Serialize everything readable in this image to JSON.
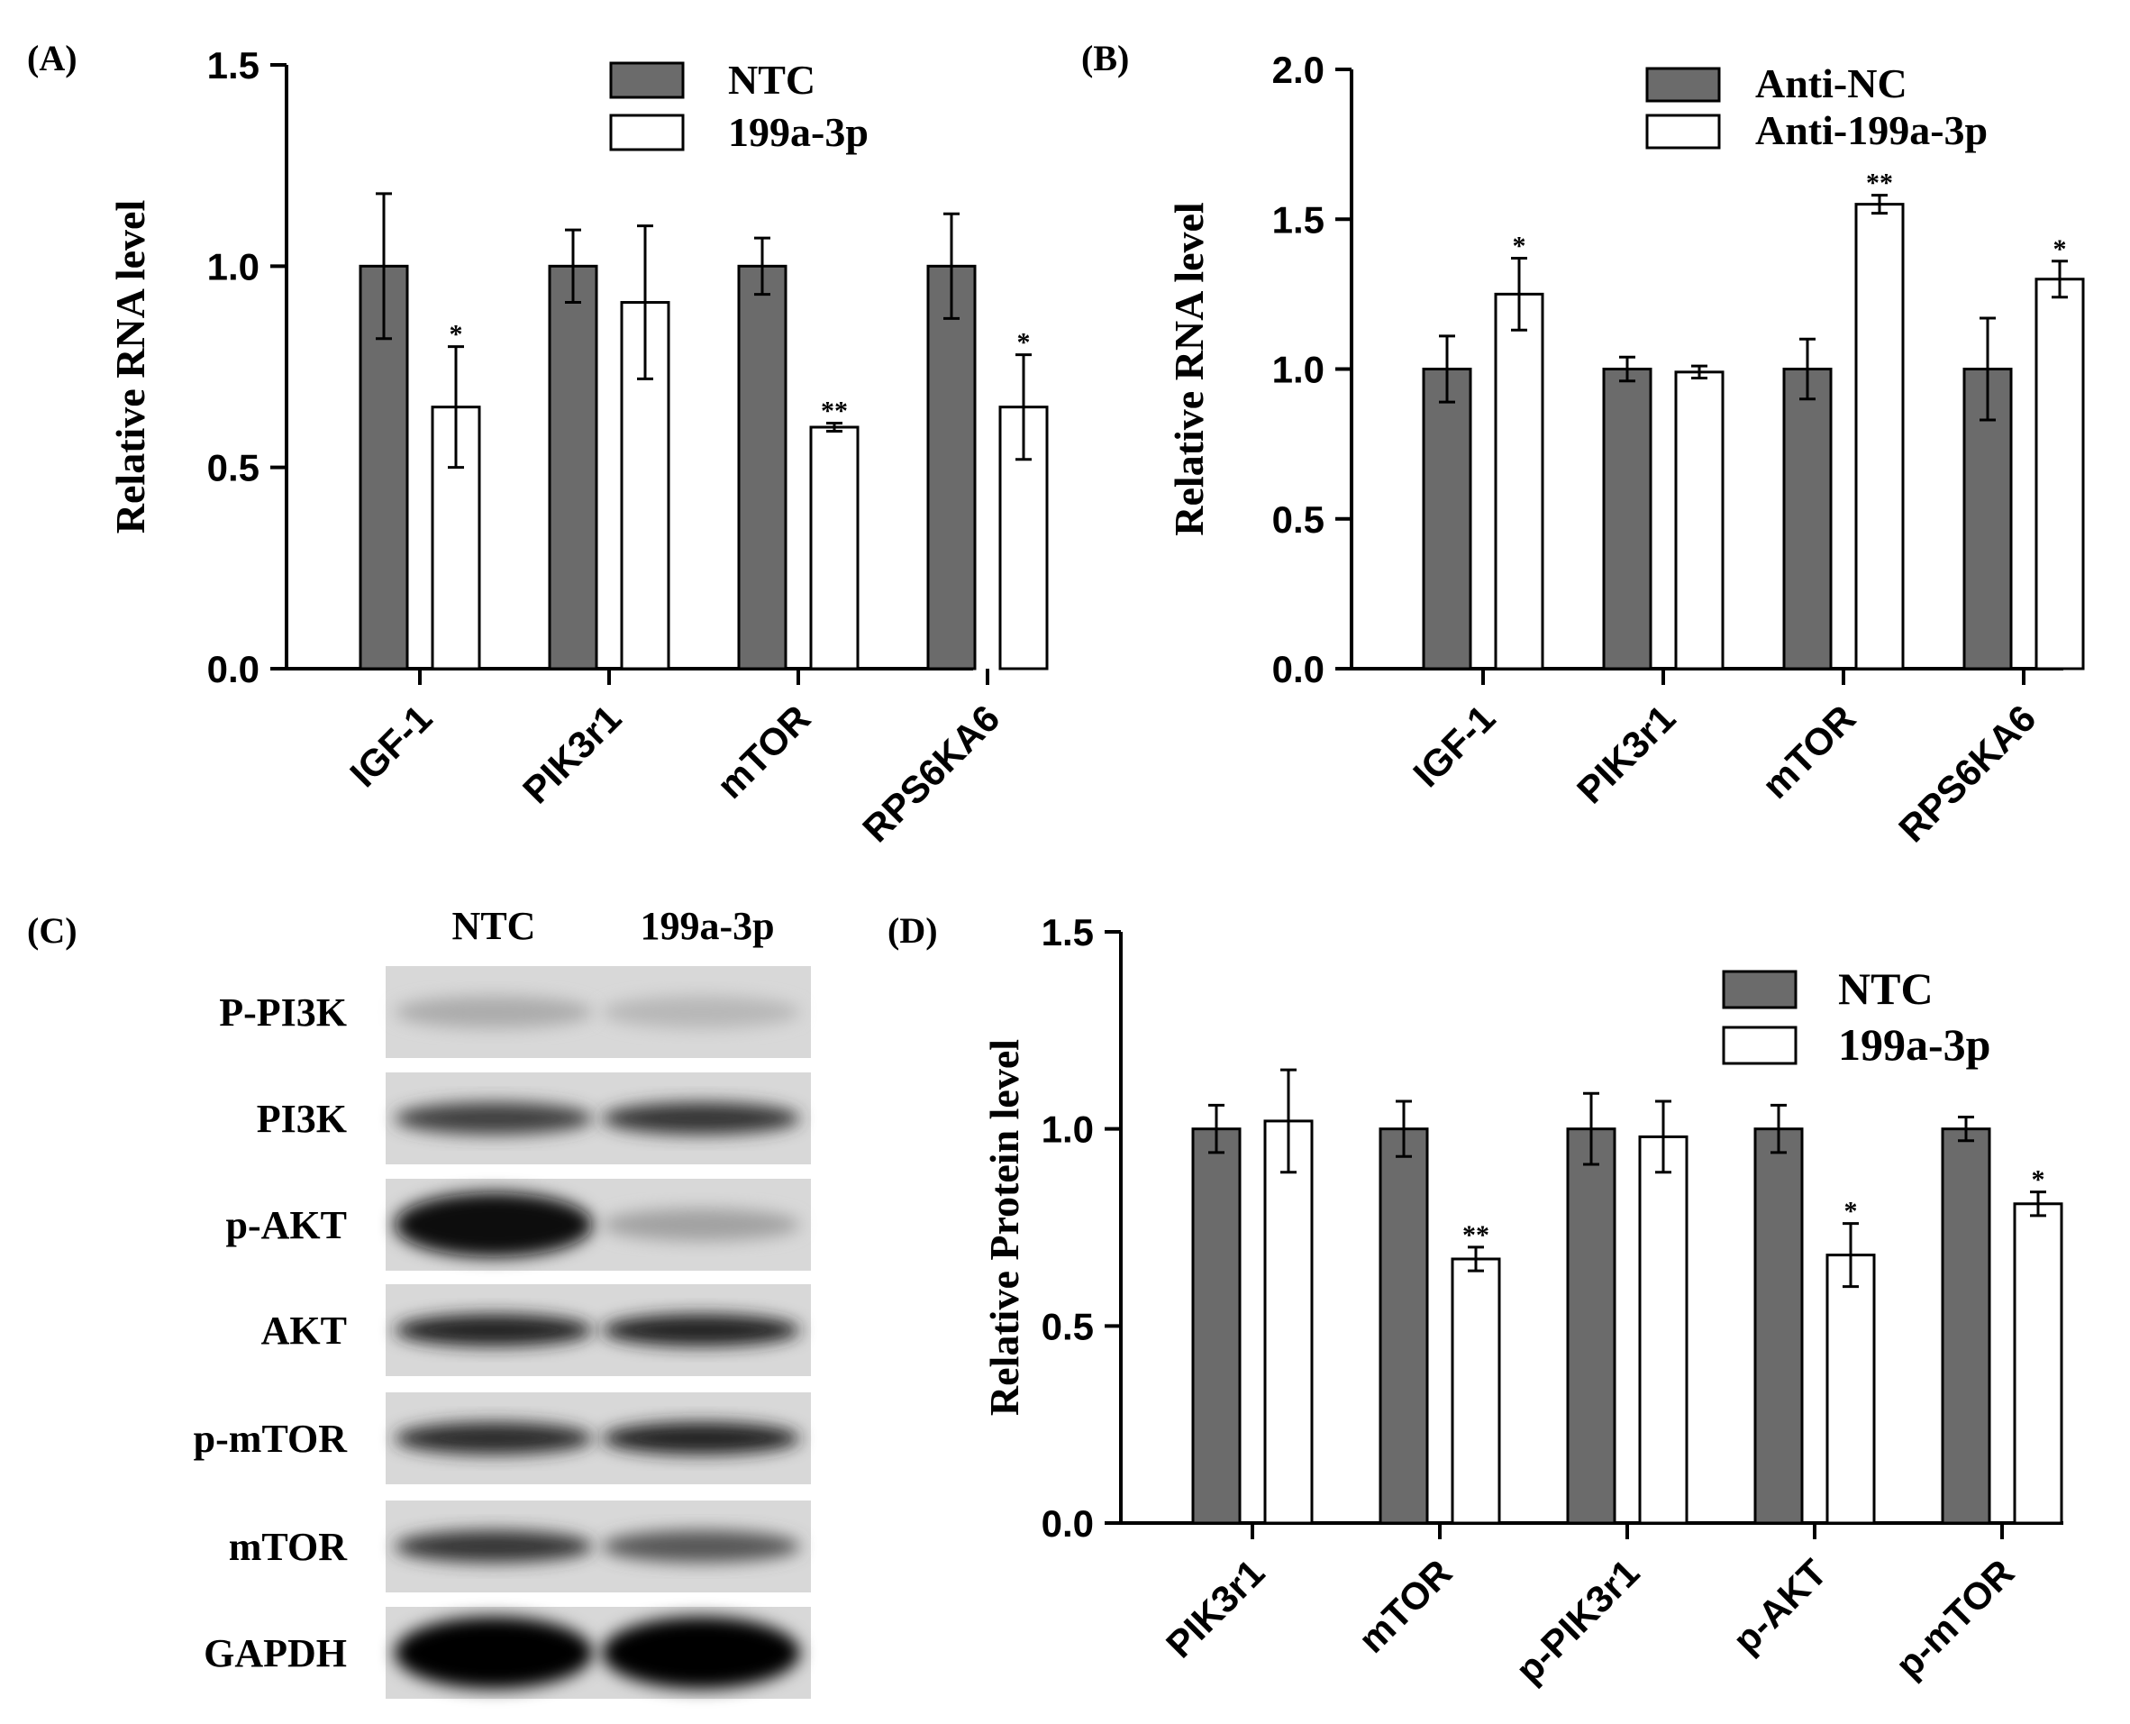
{
  "colors": {
    "dark_bar": "#6b6b6b",
    "light_bar": "#ffffff",
    "axis": "#000000"
  },
  "chart_data": [
    {
      "panel": "(A)",
      "type": "bar",
      "ylabel": "Relative  RNA level",
      "ylim": [
        0,
        1.5
      ],
      "yticks": [
        "0.0",
        "0.5",
        "1.0",
        "1.5"
      ],
      "categories": [
        "IGF-1",
        "PIK3r1",
        "mTOR",
        "RPS6KA6"
      ],
      "series": [
        {
          "name": "NTC",
          "values": [
            1.0,
            1.0,
            1.0,
            1.0
          ],
          "errors": [
            0.18,
            0.09,
            0.07,
            0.13
          ],
          "marks": [
            "",
            "",
            "",
            ""
          ]
        },
        {
          "name": "199a-3p",
          "values": [
            0.65,
            0.91,
            0.6,
            0.65
          ],
          "errors": [
            0.15,
            0.19,
            0.01,
            0.13
          ],
          "marks": [
            "*",
            "",
            "**",
            "*"
          ]
        }
      ]
    },
    {
      "panel": "(B)",
      "type": "bar",
      "ylabel": "Relative  RNA level",
      "ylim": [
        0,
        2.0
      ],
      "yticks": [
        "0.0",
        "0.5",
        "1.0",
        "1.5",
        "2.0"
      ],
      "categories": [
        "IGF-1",
        "PIK3r1",
        "mTOR",
        "RPS6KA6"
      ],
      "series": [
        {
          "name": "Anti-NC",
          "values": [
            1.0,
            1.0,
            1.0,
            1.0
          ],
          "errors": [
            0.11,
            0.04,
            0.1,
            0.17
          ],
          "marks": [
            "",
            "",
            "",
            ""
          ]
        },
        {
          "name": "Anti-199a-3p",
          "values": [
            1.25,
            0.99,
            1.55,
            1.3
          ],
          "errors": [
            0.12,
            0.02,
            0.03,
            0.06
          ],
          "marks": [
            "*",
            "",
            "**",
            "*"
          ]
        }
      ]
    },
    {
      "panel": "(D)",
      "type": "bar",
      "ylabel": "Relative  Protein  level",
      "ylim": [
        0,
        1.5
      ],
      "yticks": [
        "0.0",
        "0.5",
        "1.0",
        "1.5"
      ],
      "categories": [
        "PIK3r1",
        "mTOR",
        "p-PIK3r1",
        "p-AKT",
        "p-mTOR"
      ],
      "series": [
        {
          "name": "NTC",
          "values": [
            1.0,
            1.0,
            1.0,
            1.0,
            1.0
          ],
          "errors": [
            0.06,
            0.07,
            0.09,
            0.06,
            0.03
          ],
          "marks": [
            "",
            "",
            "",
            "",
            ""
          ]
        },
        {
          "name": "199a-3p",
          "values": [
            1.02,
            0.67,
            0.98,
            0.68,
            0.81
          ],
          "errors": [
            0.13,
            0.03,
            0.09,
            0.08,
            0.03
          ],
          "marks": [
            "",
            "**",
            "",
            "*",
            "*"
          ]
        }
      ]
    }
  ],
  "western_blot": {
    "panel": "(C)",
    "columns": [
      "NTC",
      "199a-3p"
    ],
    "rows": [
      {
        "label": "P-PI3K",
        "intensity": [
          0.2,
          0.15
        ]
      },
      {
        "label": "PI3K",
        "intensity": [
          0.7,
          0.75
        ]
      },
      {
        "label": "p-AKT",
        "intensity": [
          0.95,
          0.25
        ]
      },
      {
        "label": "AKT",
        "intensity": [
          0.85,
          0.85
        ]
      },
      {
        "label": "p-mTOR",
        "intensity": [
          0.8,
          0.85
        ]
      },
      {
        "label": "mTOR",
        "intensity": [
          0.75,
          0.6
        ]
      },
      {
        "label": "GAPDH",
        "intensity": [
          1.0,
          1.0
        ]
      }
    ]
  }
}
